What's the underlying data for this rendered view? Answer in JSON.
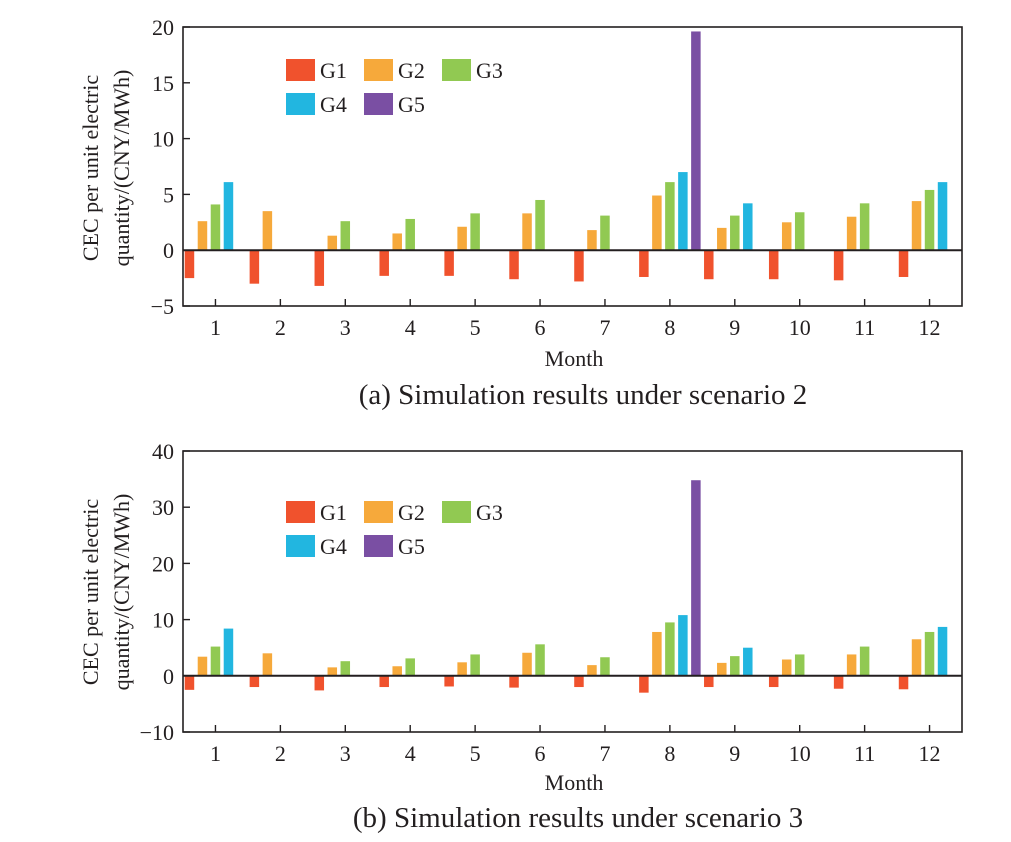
{
  "chart_data": [
    {
      "type": "bar",
      "caption": "(a) Simulation results under scenario 2",
      "xlabel": "Month",
      "ylabel_line1": "CEC per unit electric",
      "ylabel_line2": "quantity/(CNY/MWh)",
      "ylim": [
        -5,
        20
      ],
      "yticks": [
        -5,
        0,
        5,
        10,
        15,
        20
      ],
      "categories": [
        "1",
        "2",
        "3",
        "4",
        "5",
        "6",
        "7",
        "8",
        "9",
        "10",
        "11",
        "12"
      ],
      "series": [
        {
          "name": "G1",
          "values": [
            -2.5,
            -3.0,
            -3.2,
            -2.3,
            -2.3,
            -2.6,
            -2.8,
            -2.4,
            -2.6,
            -2.6,
            -2.7,
            -2.4
          ]
        },
        {
          "name": "G2",
          "values": [
            2.6,
            3.5,
            1.3,
            1.5,
            2.1,
            3.3,
            1.8,
            4.9,
            2.0,
            2.5,
            3.0,
            4.4
          ]
        },
        {
          "name": "G3",
          "values": [
            4.1,
            null,
            2.6,
            2.8,
            3.3,
            4.5,
            3.1,
            6.1,
            3.1,
            3.4,
            4.2,
            5.4
          ]
        },
        {
          "name": "G4",
          "values": [
            6.1,
            null,
            null,
            null,
            null,
            null,
            null,
            7.0,
            4.2,
            null,
            null,
            6.1
          ]
        },
        {
          "name": "G5",
          "values": [
            null,
            null,
            null,
            null,
            null,
            null,
            null,
            19.6,
            null,
            null,
            null,
            null
          ]
        }
      ]
    },
    {
      "type": "bar",
      "caption": "(b) Simulation results under scenario 3",
      "xlabel": "Month",
      "ylabel_line1": "CEC per unit electric",
      "ylabel_line2": "quantity/(CNY/MWh)",
      "ylim": [
        -10,
        40
      ],
      "yticks": [
        -10,
        0,
        10,
        20,
        30,
        40
      ],
      "categories": [
        "1",
        "2",
        "3",
        "4",
        "5",
        "6",
        "7",
        "8",
        "9",
        "10",
        "11",
        "12"
      ],
      "series": [
        {
          "name": "G1",
          "values": [
            -2.5,
            -2.0,
            -2.6,
            -2.0,
            -1.9,
            -2.1,
            -2.0,
            -3.0,
            -2.0,
            -2.0,
            -2.3,
            -2.4
          ]
        },
        {
          "name": "G2",
          "values": [
            3.4,
            4.0,
            1.5,
            1.7,
            2.4,
            4.1,
            1.9,
            7.8,
            2.3,
            2.9,
            3.8,
            6.5
          ]
        },
        {
          "name": "G3",
          "values": [
            5.2,
            null,
            2.6,
            3.1,
            3.8,
            5.6,
            3.3,
            9.5,
            3.5,
            3.8,
            5.2,
            7.8
          ]
        },
        {
          "name": "G4",
          "values": [
            8.4,
            null,
            null,
            null,
            null,
            null,
            null,
            10.8,
            5.0,
            null,
            null,
            8.7
          ]
        },
        {
          "name": "G5",
          "values": [
            null,
            null,
            null,
            null,
            null,
            null,
            null,
            34.8,
            null,
            null,
            null,
            null
          ]
        }
      ]
    }
  ],
  "colors": {
    "G1": "#f0522d",
    "G2": "#f6a93b",
    "G3": "#91c952",
    "G4": "#22b6e0",
    "G5": "#7a4fa3",
    "axis": "#231f20"
  }
}
